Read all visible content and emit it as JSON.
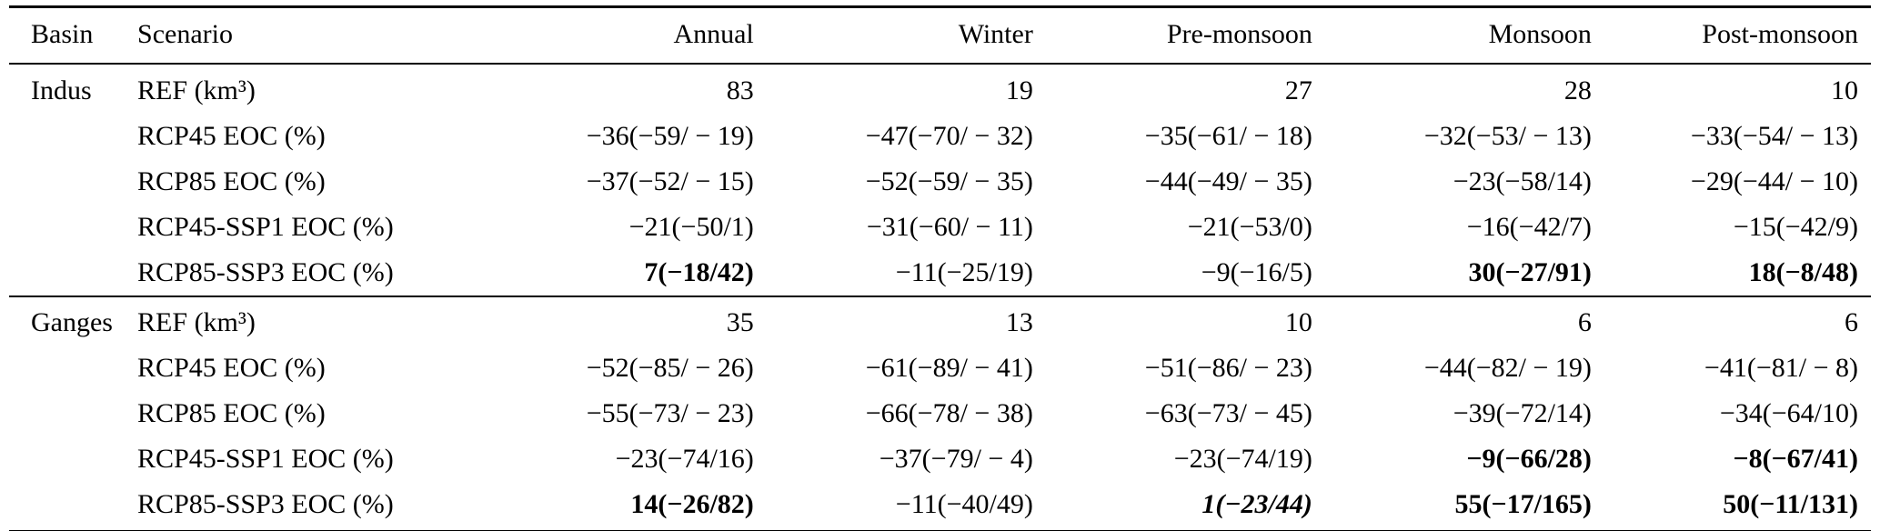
{
  "table": {
    "headers": {
      "basin": "Basin",
      "scenario": "Scenario",
      "annual": "Annual",
      "winter": "Winter",
      "pre_monsoon": "Pre-monsoon",
      "monsoon": "Monsoon",
      "post_monsoon": "Post-monsoon"
    },
    "sections": [
      {
        "basin": "Indus",
        "rows": [
          {
            "scenario": "REF (km³)",
            "values": [
              {
                "text": "83",
                "style": "normal"
              },
              {
                "text": "19",
                "style": "normal"
              },
              {
                "text": "27",
                "style": "normal"
              },
              {
                "text": "28",
                "style": "normal"
              },
              {
                "text": "10",
                "style": "normal"
              }
            ]
          },
          {
            "scenario": "RCP45 EOC (%)",
            "values": [
              {
                "text": "−36(−59/ − 19)",
                "style": "normal"
              },
              {
                "text": "−47(−70/ − 32)",
                "style": "normal"
              },
              {
                "text": "−35(−61/ − 18)",
                "style": "normal"
              },
              {
                "text": "−32(−53/ − 13)",
                "style": "normal"
              },
              {
                "text": "−33(−54/ − 13)",
                "style": "normal"
              }
            ]
          },
          {
            "scenario": "RCP85 EOC (%)",
            "values": [
              {
                "text": "−37(−52/ − 15)",
                "style": "normal"
              },
              {
                "text": "−52(−59/ − 35)",
                "style": "normal"
              },
              {
                "text": "−44(−49/ − 35)",
                "style": "normal"
              },
              {
                "text": "−23(−58/14)",
                "style": "normal"
              },
              {
                "text": "−29(−44/ − 10)",
                "style": "normal"
              }
            ]
          },
          {
            "scenario": "RCP45-SSP1 EOC (%)",
            "values": [
              {
                "text": "−21(−50/1)",
                "style": "normal"
              },
              {
                "text": "−31(−60/ − 11)",
                "style": "normal"
              },
              {
                "text": "−21(−53/0)",
                "style": "normal"
              },
              {
                "text": "−16(−42/7)",
                "style": "normal"
              },
              {
                "text": "−15(−42/9)",
                "style": "normal"
              }
            ]
          },
          {
            "scenario": "RCP85-SSP3 EOC (%)",
            "values": [
              {
                "text": "7(−18/42)",
                "style": "bold"
              },
              {
                "text": "−11(−25/19)",
                "style": "normal"
              },
              {
                "text": "−9(−16/5)",
                "style": "normal"
              },
              {
                "text": "30(−27/91)",
                "style": "bold"
              },
              {
                "text": "18(−8/48)",
                "style": "bold"
              }
            ]
          }
        ]
      },
      {
        "basin": "Ganges",
        "rows": [
          {
            "scenario": "REF (km³)",
            "values": [
              {
                "text": "35",
                "style": "normal"
              },
              {
                "text": "13",
                "style": "normal"
              },
              {
                "text": "10",
                "style": "normal"
              },
              {
                "text": "6",
                "style": "normal"
              },
              {
                "text": "6",
                "style": "normal"
              }
            ]
          },
          {
            "scenario": "RCP45 EOC (%)",
            "values": [
              {
                "text": "−52(−85/ − 26)",
                "style": "normal"
              },
              {
                "text": "−61(−89/ − 41)",
                "style": "normal"
              },
              {
                "text": "−51(−86/ − 23)",
                "style": "normal"
              },
              {
                "text": "−44(−82/ − 19)",
                "style": "normal"
              },
              {
                "text": "−41(−81/ − 8)",
                "style": "normal"
              }
            ]
          },
          {
            "scenario": "RCP85 EOC (%)",
            "values": [
              {
                "text": "−55(−73/ − 23)",
                "style": "normal"
              },
              {
                "text": "−66(−78/ − 38)",
                "style": "normal"
              },
              {
                "text": "−63(−73/ − 45)",
                "style": "normal"
              },
              {
                "text": "−39(−72/14)",
                "style": "normal"
              },
              {
                "text": "−34(−64/10)",
                "style": "normal"
              }
            ]
          },
          {
            "scenario": "RCP45-SSP1 EOC (%)",
            "values": [
              {
                "text": "−23(−74/16)",
                "style": "normal"
              },
              {
                "text": "−37(−79/ − 4)",
                "style": "normal"
              },
              {
                "text": "−23(−74/19)",
                "style": "normal"
              },
              {
                "text": "−9(−66/28)",
                "style": "bold"
              },
              {
                "text": "−8(−67/41)",
                "style": "bold"
              }
            ]
          },
          {
            "scenario": "RCP85-SSP3 EOC (%)",
            "values": [
              {
                "text": "14(−26/82)",
                "style": "bold"
              },
              {
                "text": "−11(−40/49)",
                "style": "normal"
              },
              {
                "text": "1(−23/44)",
                "style": "bolditalic"
              },
              {
                "text": "55(−17/165)",
                "style": "bold"
              },
              {
                "text": "50(−11/131)",
                "style": "bold"
              }
            ]
          }
        ]
      }
    ]
  }
}
